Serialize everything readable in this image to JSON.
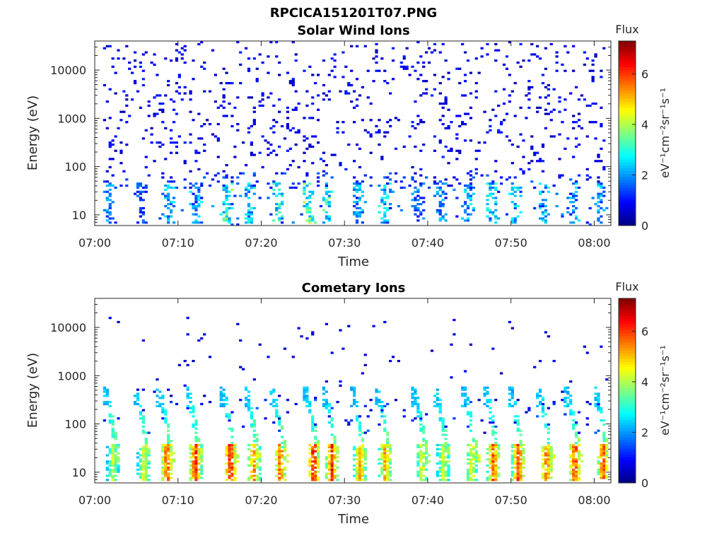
{
  "figure_title": "RPCICA151201T07.PNG",
  "chart_data": [
    {
      "type": "heatmap",
      "title": "Solar Wind Ions",
      "xlabel": "Time",
      "ylabel": "Energy (eV)",
      "y_scale": "log",
      "ylim": [
        6,
        40000
      ],
      "x_ticks": [
        "07:00",
        "07:10",
        "07:20",
        "07:30",
        "07:40",
        "07:50",
        "08:00"
      ],
      "y_ticks": [
        "10",
        "100",
        "1000",
        "10000"
      ],
      "xlim_minutes": [
        0,
        62
      ],
      "colorbar": {
        "label": "Flux",
        "units": "eV⁻¹cm⁻²sr⁻¹s⁻¹",
        "range": [
          0,
          7.3
        ],
        "ticks": [
          "0",
          "2",
          "4",
          "6"
        ]
      },
      "colormap": "jet",
      "dominant_population": "sparse low-flux background (0.3-1.5) across all energies, enhanced 2-4 flux near 10-40 eV",
      "bursts": [
        {
          "t": 1.8,
          "flux": 2.2
        },
        {
          "t": 5.6,
          "flux": 1.6
        },
        {
          "t": 9.0,
          "flux": 2.5
        },
        {
          "t": 12.2,
          "flux": 2.6
        },
        {
          "t": 15.8,
          "flux": 3.6
        },
        {
          "t": 18.6,
          "flux": 2.8
        },
        {
          "t": 22.0,
          "flux": 3.2
        },
        {
          "t": 25.8,
          "flux": 3.8
        },
        {
          "t": 28.0,
          "flux": 3.4
        },
        {
          "t": 31.6,
          "flux": 2.4
        },
        {
          "t": 34.8,
          "flux": 3.0
        },
        {
          "t": 38.8,
          "flux": 2.0
        },
        {
          "t": 41.6,
          "flux": 2.2
        },
        {
          "t": 44.8,
          "flux": 2.6
        },
        {
          "t": 47.6,
          "flux": 3.0
        },
        {
          "t": 50.6,
          "flux": 2.8
        },
        {
          "t": 54.0,
          "flux": 2.8
        },
        {
          "t": 57.4,
          "flux": 2.6
        },
        {
          "t": 60.6,
          "flux": 2.4
        }
      ]
    },
    {
      "type": "heatmap",
      "title": "Cometary Ions",
      "xlabel": "Time",
      "ylabel": "Energy (eV)",
      "y_scale": "log",
      "ylim": [
        6,
        40000
      ],
      "x_ticks": [
        "07:00",
        "07:10",
        "07:20",
        "07:30",
        "07:40",
        "07:50",
        "08:00"
      ],
      "y_ticks": [
        "10",
        "100",
        "1000",
        "10000"
      ],
      "xlim_minutes": [
        0,
        62
      ],
      "colorbar": {
        "label": "Flux",
        "units": "eV⁻¹cm⁻²sr⁻¹s⁻¹",
        "range": [
          0,
          7.3
        ],
        "ticks": [
          "0",
          "2",
          "4",
          "6"
        ]
      },
      "colormap": "jet",
      "dominant_population": "periodic dispersed bursts: energy falls from ~300 eV to ~10 eV, peak flux 5-6.8 at 10-40 eV",
      "bursts": [
        {
          "t": 1.5,
          "peak": 4.4
        },
        {
          "t": 5.2,
          "peak": 4.8
        },
        {
          "t": 8.0,
          "peak": 6.2
        },
        {
          "t": 11.4,
          "peak": 6.4
        },
        {
          "t": 15.6,
          "peak": 6.8
        },
        {
          "t": 18.4,
          "peak": 5.8
        },
        {
          "t": 21.6,
          "peak": 6.2
        },
        {
          "t": 25.6,
          "peak": 6.8
        },
        {
          "t": 27.8,
          "peak": 6.4
        },
        {
          "t": 31.2,
          "peak": 5.6
        },
        {
          "t": 34.2,
          "peak": 5.6
        },
        {
          "t": 38.6,
          "peak": 4.8
        },
        {
          "t": 41.2,
          "peak": 4.6
        },
        {
          "t": 44.6,
          "peak": 4.8
        },
        {
          "t": 47.2,
          "peak": 6.2
        },
        {
          "t": 50.2,
          "peak": 6.4
        },
        {
          "t": 53.6,
          "peak": 6.0
        },
        {
          "t": 57.0,
          "peak": 6.4
        },
        {
          "t": 60.4,
          "peak": 6.2
        }
      ]
    }
  ]
}
